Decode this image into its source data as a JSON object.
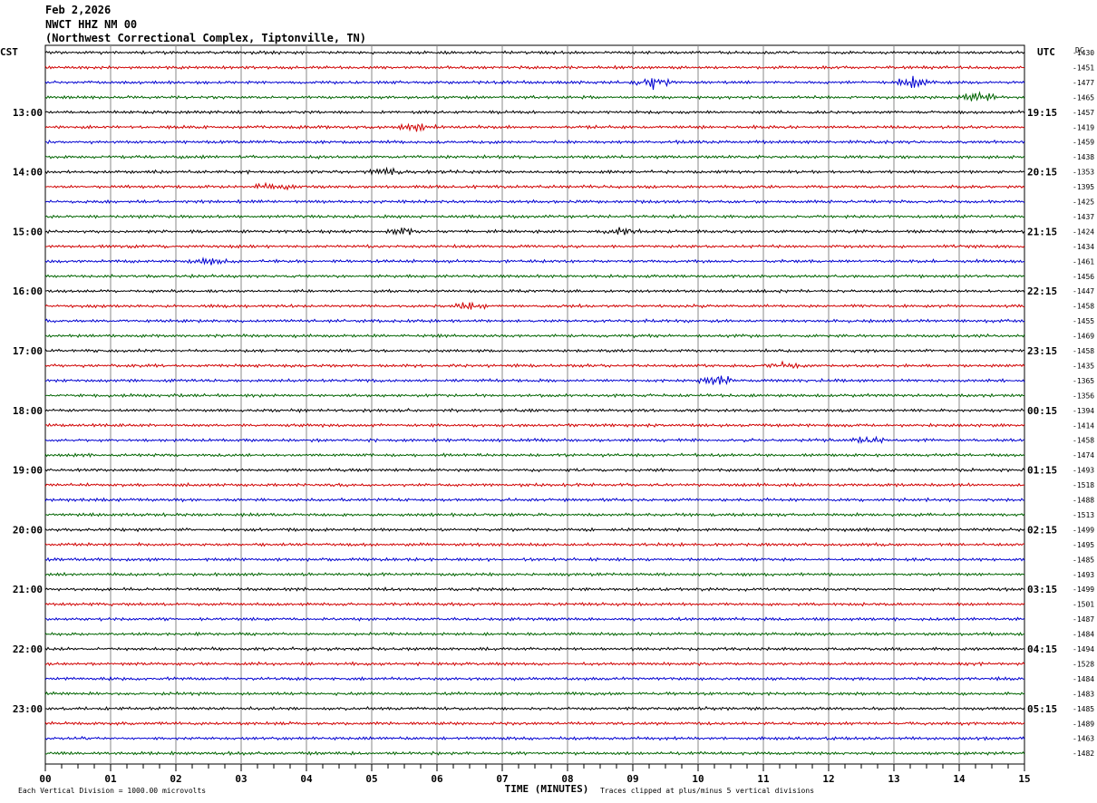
{
  "header": {
    "date": "Feb 2,2026",
    "station": "NWCT HHZ NM 00",
    "location": "(Northwest Correctional Complex, Tiptonville, TN)"
  },
  "footer": {
    "scale_note": "Each Vertical Division = 1000.00 microvolts",
    "clip_note": "Traces clipped at plus/minus 5 vertical divisions"
  },
  "chart_data": {
    "type": "line",
    "title": "",
    "xlabel": "TIME (MINUTES)",
    "x_ticks": [
      "00",
      "01",
      "02",
      "03",
      "04",
      "05",
      "06",
      "07",
      "08",
      "09",
      "10",
      "11",
      "12",
      "13",
      "14",
      "15"
    ],
    "xlim": [
      0,
      15
    ],
    "left_axis_label": "CST",
    "right_axis_label": "UTC",
    "dc_label": "DC",
    "cst_hour_labels": [
      "13:00",
      "14:00",
      "15:00",
      "16:00",
      "17:00",
      "18:00",
      "19:00",
      "20:00",
      "21:00",
      "22:00",
      "23:00"
    ],
    "utc_hour_labels": [
      "19:15",
      "20:15",
      "21:15",
      "22:15",
      "23:15",
      "00:15",
      "01:15",
      "02:15",
      "03:15",
      "04:15",
      "05:15"
    ],
    "trace_colors": [
      "#000000",
      "#d00000",
      "#0000d0",
      "#006400"
    ],
    "dc_offsets": [
      -1430,
      -1451,
      -1477,
      -1465,
      -1457,
      -1419,
      -1459,
      -1438,
      -1353,
      -1395,
      -1425,
      -1437,
      -1424,
      -1434,
      -1461,
      -1456,
      -1447,
      -1458,
      -1455,
      -1469,
      -1458,
      -1435,
      -1365,
      -1356,
      -1394,
      -1414,
      -1458,
      -1474,
      -1493,
      -1518,
      -1488,
      -1513,
      -1499,
      -1495,
      -1485,
      -1493,
      -1499,
      -1501,
      -1487,
      -1484,
      -1494,
      -1528,
      -1484,
      -1483,
      -1485,
      -1489,
      -1463,
      -1482
    ],
    "events": [
      {
        "trace": 2,
        "minute": 9.3,
        "amp": 6
      },
      {
        "trace": 2,
        "minute": 13.3,
        "amp": 5
      },
      {
        "trace": 3,
        "minute": 14.3,
        "amp": 5
      },
      {
        "trace": 5,
        "minute": 5.7,
        "amp": 4
      },
      {
        "trace": 8,
        "minute": 5.2,
        "amp": 3
      },
      {
        "trace": 9,
        "minute": 3.5,
        "amp": 4
      },
      {
        "trace": 12,
        "minute": 5.5,
        "amp": 3
      },
      {
        "trace": 12,
        "minute": 8.8,
        "amp": 3
      },
      {
        "trace": 14,
        "minute": 2.5,
        "amp": 3
      },
      {
        "trace": 17,
        "minute": 6.5,
        "amp": 3
      },
      {
        "trace": 21,
        "minute": 11.3,
        "amp": 4
      },
      {
        "trace": 22,
        "minute": 10.3,
        "amp": 5
      },
      {
        "trace": 26,
        "minute": 12.6,
        "amp": 3
      }
    ]
  }
}
